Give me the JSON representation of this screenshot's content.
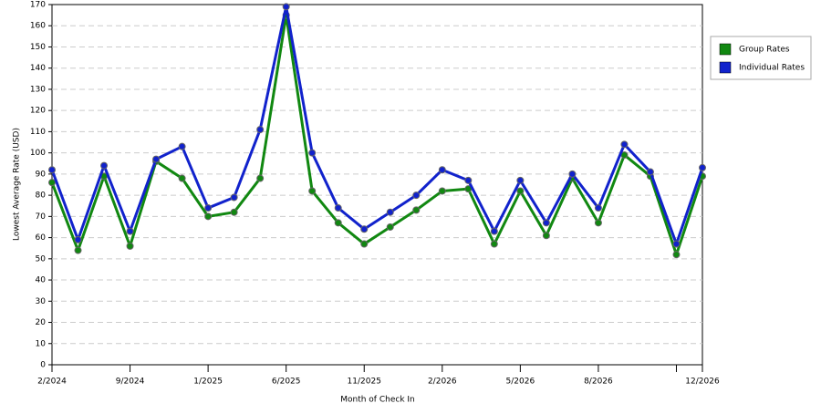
{
  "chart_data": {
    "type": "line",
    "x_label": "Month of Check In",
    "y_label": "Lowest Average Rate (USD)",
    "categories": [
      "2/2024",
      null,
      null,
      "9/2024",
      null,
      null,
      "1/2025",
      null,
      null,
      "6/2025",
      null,
      null,
      "11/2025",
      null,
      null,
      "2/2026",
      null,
      null,
      "5/2026",
      null,
      null,
      "8/2026",
      null,
      null,
      null,
      "12/2026"
    ],
    "series": [
      {
        "name": "Group Rates",
        "color": "#118811",
        "values": [
          86,
          54,
          89,
          56,
          96,
          88,
          70,
          72,
          88,
          165,
          82,
          67,
          57,
          65,
          73,
          82,
          83,
          57,
          82,
          61,
          88,
          67,
          99,
          89,
          52,
          89
        ]
      },
      {
        "name": "Individual Rates",
        "color": "#1122cc",
        "values": [
          92,
          59,
          94,
          63,
          97,
          103,
          74,
          79,
          111,
          169,
          100,
          74,
          64,
          72,
          80,
          92,
          87,
          63,
          87,
          67,
          90,
          74,
          104,
          91,
          57,
          93
        ]
      }
    ],
    "ylim": [
      0,
      170
    ],
    "yticks": [
      0,
      10,
      20,
      30,
      40,
      50,
      60,
      70,
      80,
      90,
      100,
      110,
      120,
      130,
      140,
      150,
      160,
      170
    ],
    "grid": true,
    "legend": "right"
  }
}
